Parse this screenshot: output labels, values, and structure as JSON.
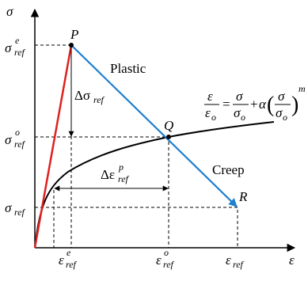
{
  "axes": {
    "y": "σ",
    "x": "ε"
  },
  "y_labels": [
    {
      "base": "σ",
      "sup": "e",
      "sub": "ref"
    },
    {
      "base": "σ",
      "sup": "o",
      "sub": "ref"
    },
    {
      "base": "σ",
      "sub": "ref"
    }
  ],
  "x_labels": [
    {
      "base": "ε",
      "sup": "e",
      "sub": "ref"
    },
    {
      "base": "ε",
      "sup": "o",
      "sub": "ref"
    },
    {
      "base": "ε",
      "sub": "ref"
    }
  ],
  "points": [
    "P",
    "Q",
    "R"
  ],
  "regions": [
    "Plastic",
    "Creep"
  ],
  "increments": {
    "stress": {
      "base": "Δσ",
      "sub": "ref"
    },
    "strain": {
      "base": "Δε",
      "sup": "p",
      "sub": "ref"
    }
  },
  "equation": {
    "lhs_num": "ε",
    "lhs_den": "ε",
    "lhs_den_sub": "o",
    "equals": "=",
    "f1_num": "σ",
    "f1_den": "σ",
    "f1_den_sub": "o",
    "plus": "+",
    "alpha": "α",
    "open": "(",
    "f2_num": "σ",
    "f2_den": "σ",
    "f2_den_sub": "o",
    "close": ")",
    "power": "m"
  }
}
